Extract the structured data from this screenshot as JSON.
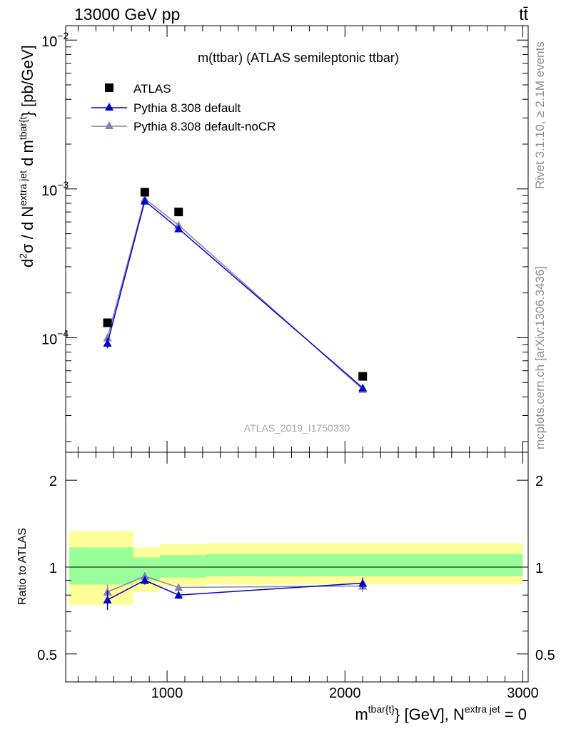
{
  "header": {
    "left_label": "13000 GeV pp",
    "right_label": "tt̄"
  },
  "side_labels": {
    "rivet": "Rivet 3.1.10, ≥ 2.1M events",
    "mcplots": "mcplots.cern.ch [arXiv:1306.3436]"
  },
  "colors": {
    "data": "#000000",
    "pythia_default": "#0000cc",
    "pythia_nocr": "#8080b3",
    "band_inner": "#99ff99",
    "band_outer": "#ffff99"
  },
  "chart_data": [
    {
      "type": "scatter",
      "panel": "main",
      "title": "m(ttbar) (ATLAS semileptonic ttbar)",
      "watermark": "ATLAS_2019_I1750330",
      "ylabel": {
        "prefix": "d",
        "sup1": "2",
        "sigma": "σ /  d N",
        "sup2": "extra jet",
        "mid": " d m",
        "sup3": "tbar{t",
        "suffix": "} [pb/GeV]"
      },
      "yscale": "log",
      "ylim": [
        1.7e-05,
        0.0125
      ],
      "xlim": [
        430,
        3030
      ],
      "y_ticks": [
        {
          "value": 0.0001,
          "label": "10",
          "exp": "−4"
        },
        {
          "value": 0.001,
          "label": "10",
          "exp": "−3"
        },
        {
          "value": 0.01,
          "label": "10",
          "exp": "−2"
        }
      ],
      "legend_position": "top-left",
      "legend": [
        {
          "label": "ATLAS",
          "marker": "square"
        },
        {
          "label": "Pythia 8.308 default",
          "marker": "triangle"
        },
        {
          "label": "Pythia 8.308 default-noCR",
          "marker": "triangle"
        }
      ],
      "series": [
        {
          "name": "ATLAS",
          "x": [
            665,
            875,
            1065,
            2100
          ],
          "y": [
            0.000126,
            0.00095,
            0.0007,
            5.5e-05
          ]
        },
        {
          "name": "Pythia 8.308 default",
          "x": [
            665,
            875,
            1065,
            2100
          ],
          "y": [
            9.2e-05,
            0.00083,
            0.00054,
            4.6e-05
          ],
          "yerr": [
            7e-06,
            2e-05,
            1e-05,
            2e-06
          ]
        },
        {
          "name": "Pythia 8.308 default-noCR",
          "x": [
            665,
            875,
            1065,
            2100
          ],
          "y": [
            0.0001,
            0.00086,
            0.00057,
            4.5e-05
          ],
          "yerr": [
            6e-06,
            2e-05,
            1e-05,
            2e-06
          ]
        }
      ]
    },
    {
      "type": "line",
      "panel": "ratio",
      "ylabel": "Ratio to ATLAS",
      "yscale": "log",
      "ylim": [
        0.4,
        2.5
      ],
      "xlim": [
        430,
        3030
      ],
      "y_ticks": [
        {
          "value": 0.5,
          "label": "0.5"
        },
        {
          "value": 1,
          "label": "1"
        },
        {
          "value": 2,
          "label": "2"
        }
      ],
      "x_ticks": [
        {
          "value": 1000,
          "label": "1000"
        },
        {
          "value": 2000,
          "label": "2000"
        },
        {
          "value": 3000,
          "label": "3000"
        }
      ],
      "xlabel": {
        "prefix": "m",
        "sup1": "tbar{t}",
        "mid": "} [GeV], N",
        "sup2": "extra jet",
        "suffix": " = 0"
      },
      "bands": [
        {
          "x0": 450,
          "x1": 810,
          "inner": [
            0.87,
            1.17
          ],
          "outer": [
            0.74,
            1.33
          ]
        },
        {
          "x0": 810,
          "x1": 960,
          "inner": [
            0.9,
            1.08
          ],
          "outer": [
            0.82,
            1.17
          ]
        },
        {
          "x0": 960,
          "x1": 1220,
          "inner": [
            0.92,
            1.1
          ],
          "outer": [
            0.86,
            1.2
          ]
        },
        {
          "x0": 1220,
          "x1": 3000,
          "inner": [
            0.93,
            1.11
          ],
          "outer": [
            0.87,
            1.21
          ]
        }
      ],
      "series": [
        {
          "name": "Pythia 8.308 default",
          "x": [
            665,
            875,
            1065,
            2100
          ],
          "y": [
            0.77,
            0.9,
            0.8,
            0.88
          ],
          "yerr": [
            0.06,
            0.03,
            0.02,
            0.04
          ]
        },
        {
          "name": "Pythia 8.308 default-noCR",
          "x": [
            665,
            875,
            1065,
            2100
          ],
          "y": [
            0.82,
            0.93,
            0.85,
            0.86
          ],
          "yerr": [
            0.05,
            0.03,
            0.02,
            0.04
          ]
        }
      ]
    }
  ]
}
